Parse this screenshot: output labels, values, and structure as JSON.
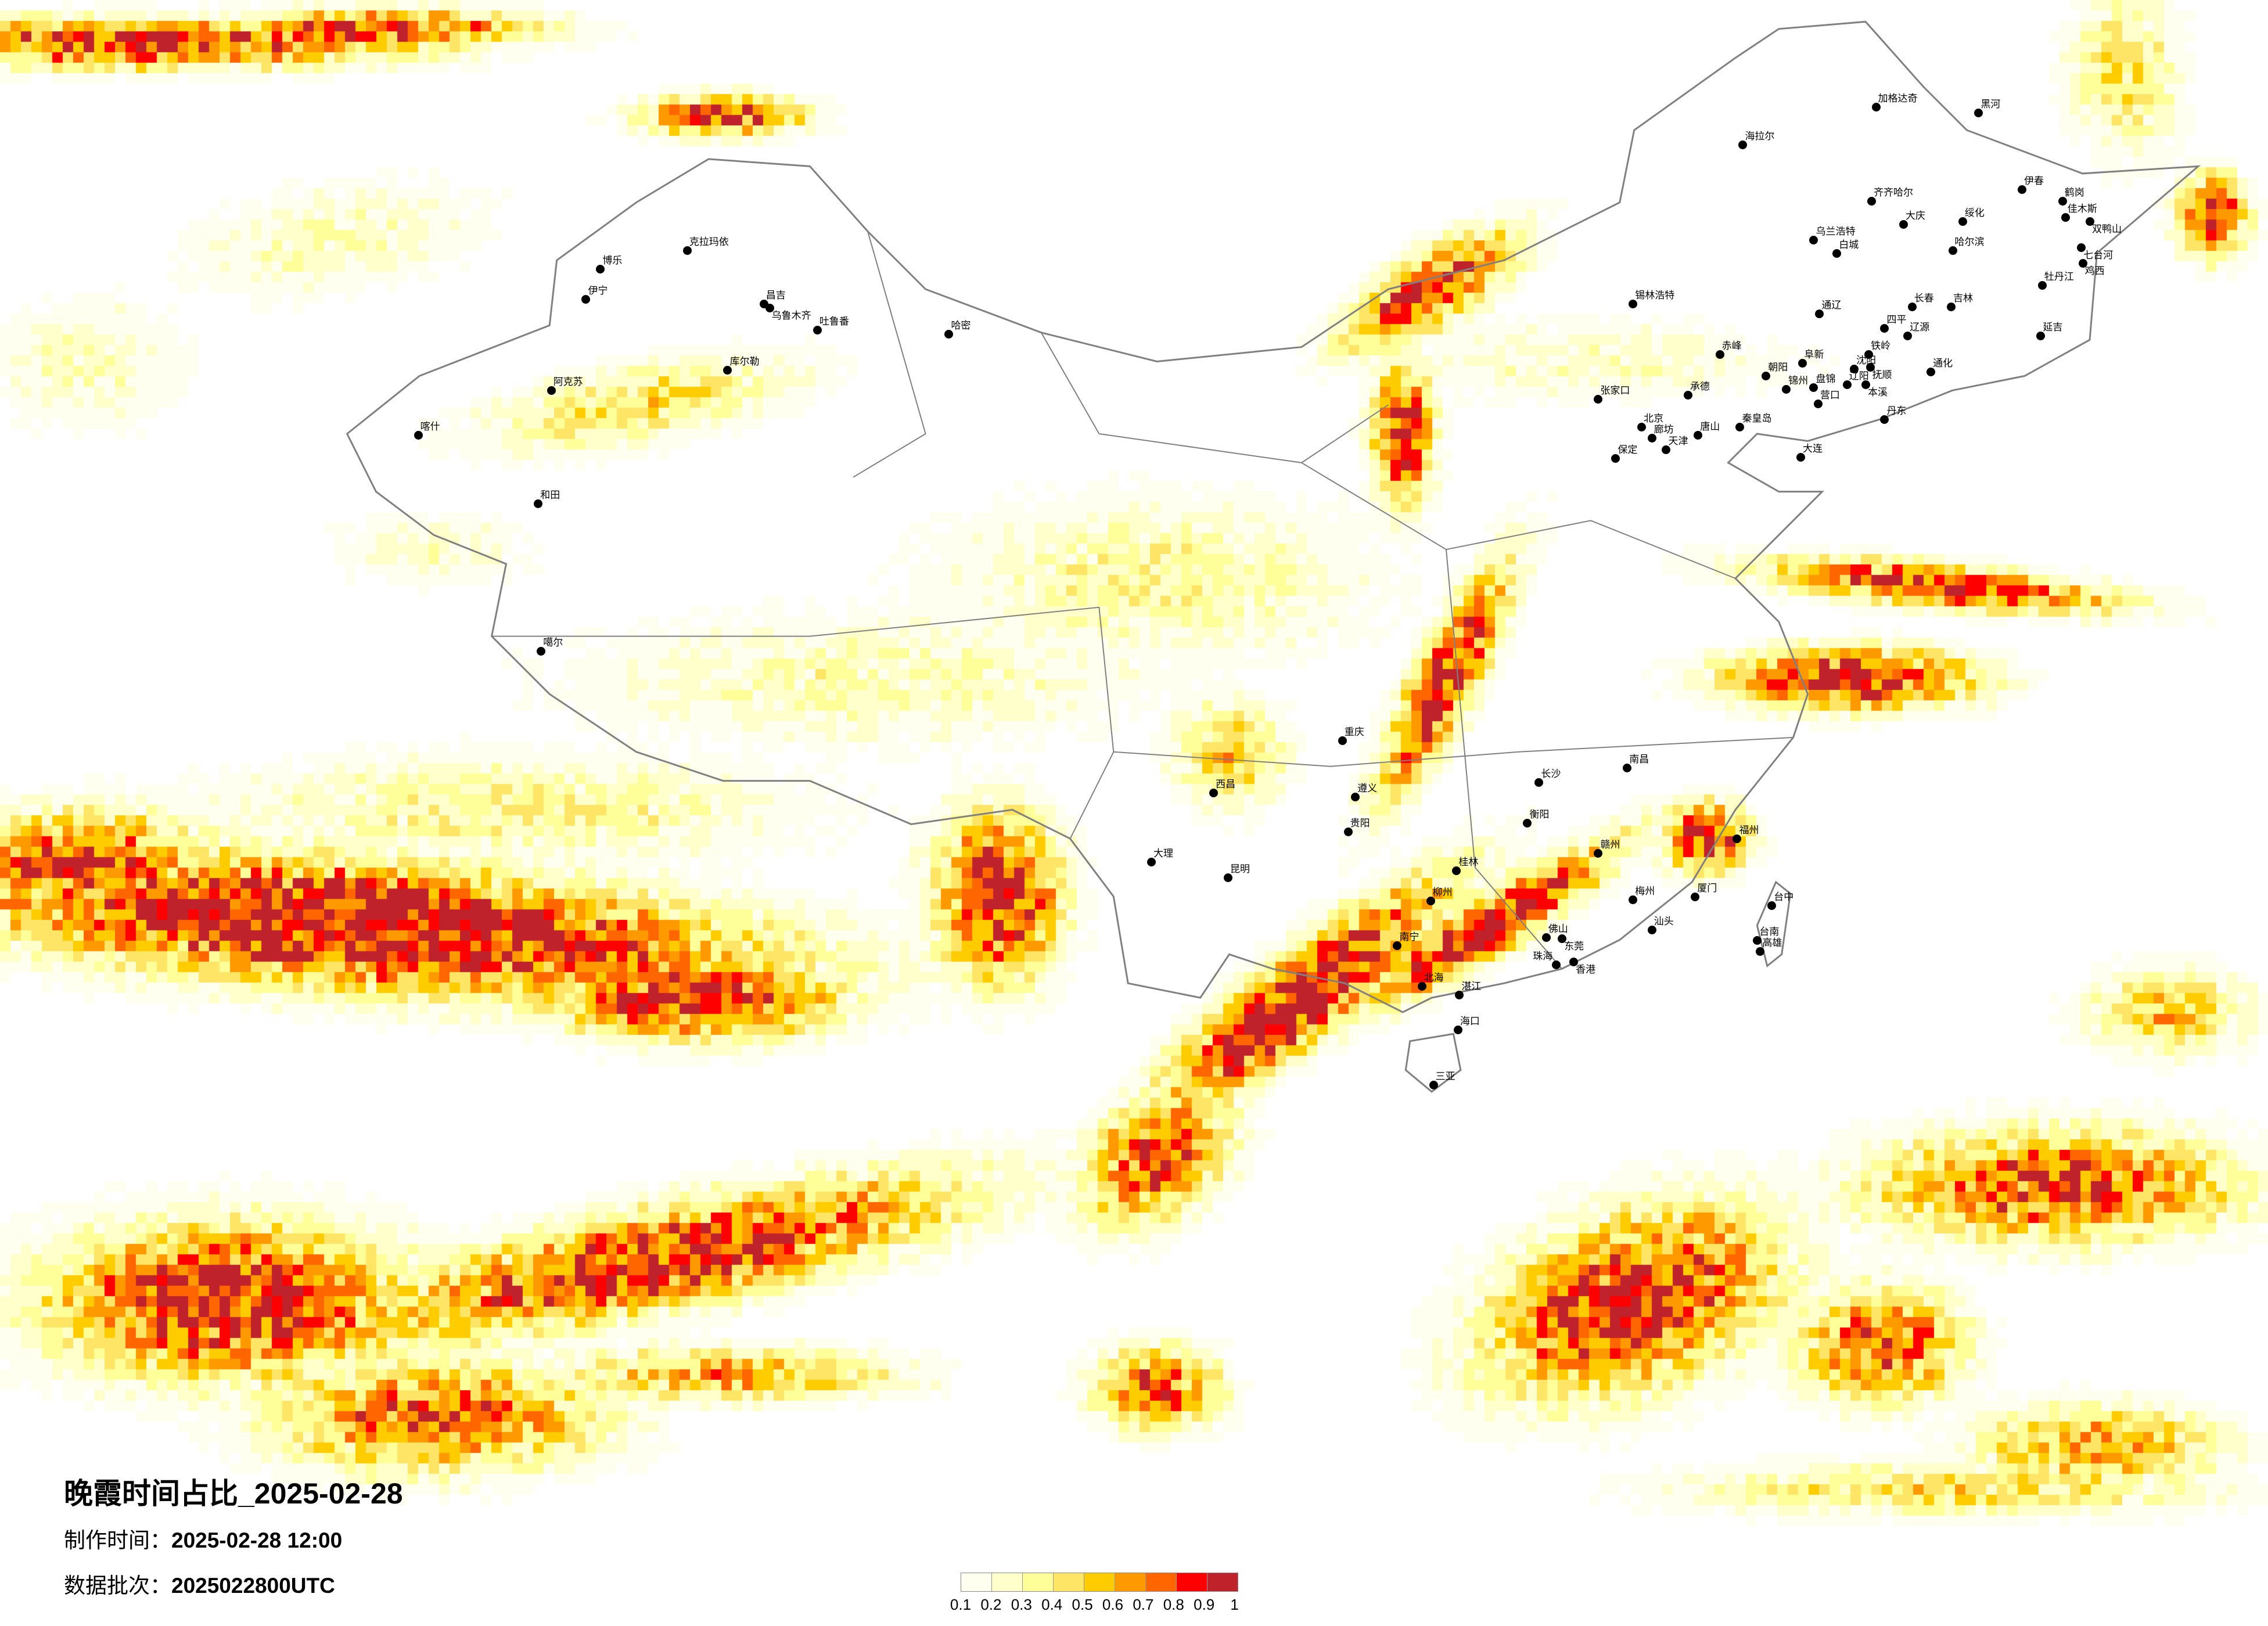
{
  "title": "晚霞时间占比_2025-02-28",
  "production_time": {
    "label": "制作时间：",
    "value": "2025-02-28 12:00"
  },
  "data_batch": {
    "label": "数据批次：",
    "value": "2025022800UTC"
  },
  "legend": {
    "colors": [
      "#fffff0",
      "#ffffcc",
      "#ffff99",
      "#ffe566",
      "#ffcc00",
      "#ff9900",
      "#ff6600",
      "#ff0000",
      "#c0222c"
    ],
    "labels": [
      "0.1",
      "0.2",
      "0.3",
      "0.4",
      "0.5",
      "0.6",
      "0.7",
      "0.8",
      "0.9",
      "1"
    ]
  },
  "boundary_color": "#808080",
  "cities": [
    "克拉玛依",
    "博乐",
    "伊宁",
    "昌吉",
    "乌鲁木齐",
    "吐鲁番",
    "哈密",
    "库尔勒",
    "阿克苏",
    "喀什",
    "和田",
    "噶尔",
    "加格达奇",
    "黑河",
    "海拉尔",
    "齐齐哈尔",
    "伊春",
    "鹤岗",
    "佳木斯",
    "双鸭山",
    "大庆",
    "绥化",
    "乌兰浩特",
    "白城",
    "哈尔滨",
    "七台河",
    "鸡西",
    "牡丹江",
    "锡林浩特",
    "通辽",
    "长春",
    "吉林",
    "四平",
    "辽源",
    "延吉",
    "赤峰",
    "阜新",
    "铁岭",
    "沈阳",
    "抚顺",
    "朝阳",
    "锦州",
    "盘锦",
    "辽阳",
    "本溪",
    "营口",
    "承德",
    "张家口",
    "通化",
    "丹东",
    "秦皇岛",
    "北京",
    "廊坊",
    "唐山",
    "天津",
    "保定",
    "大连",
    "重庆",
    "贵阳",
    "昆明",
    "南宁",
    "桂林",
    "长沙",
    "南昌",
    "福州",
    "厦门",
    "佛山",
    "东莞",
    "香港",
    "珠海",
    "海口",
    "三亚",
    "北海",
    "湛江",
    "台中",
    "台南",
    "高雄",
    "汕头",
    "梅州",
    "赣州",
    "衡阳",
    "大理",
    "遵义",
    "柳州",
    "西昌"
  ]
}
